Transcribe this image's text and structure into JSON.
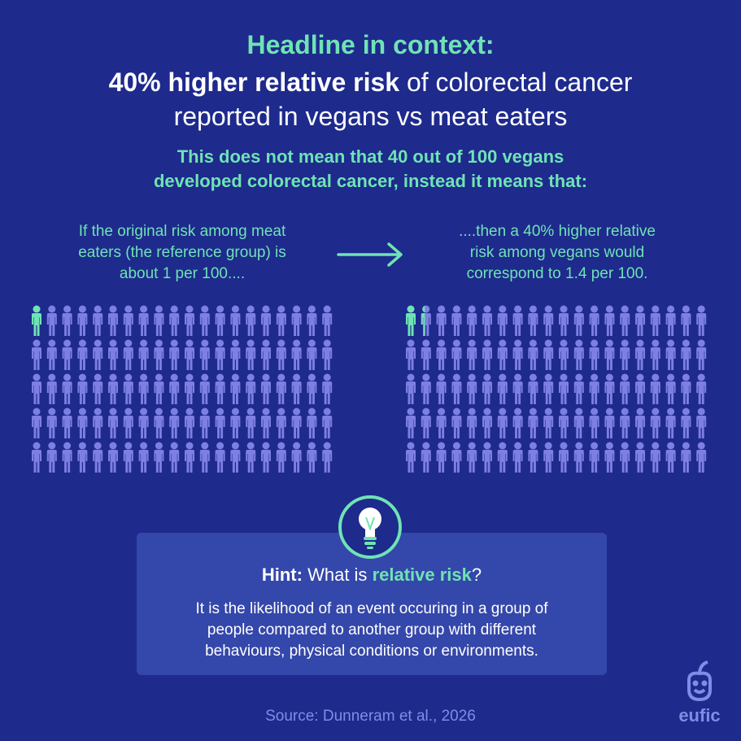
{
  "header": {
    "title": "Headline in context:",
    "headline_emphasis": "40% higher relative risk",
    "headline_lines": [
      "of colorectal cancer",
      "reported in vegans vs meat eaters"
    ],
    "subtitle_lines": [
      "This does not mean that 40 out of 100 vegans",
      "developed colorectal cancer, instead it means that:"
    ]
  },
  "comparison": {
    "left_lines": [
      "If the original risk among meat",
      "eaters (the reference group) is",
      "about 1 per 100...."
    ],
    "right_lines": [
      "....then a 40% higher relative",
      "risk among vegans would",
      "correspond to 1.4 per 100."
    ]
  },
  "hint": {
    "label": "Hint:",
    "question_start": "What is",
    "question_term": "relative risk",
    "question_end": "?",
    "body_lines": [
      "It is the likelihood of an event occuring in a group of",
      "people compared to another group with different",
      "behaviours, physical conditions or environments."
    ]
  },
  "footer": {
    "source": "Source: Dunneram et al., 2026",
    "logo": "eufic"
  }
}
